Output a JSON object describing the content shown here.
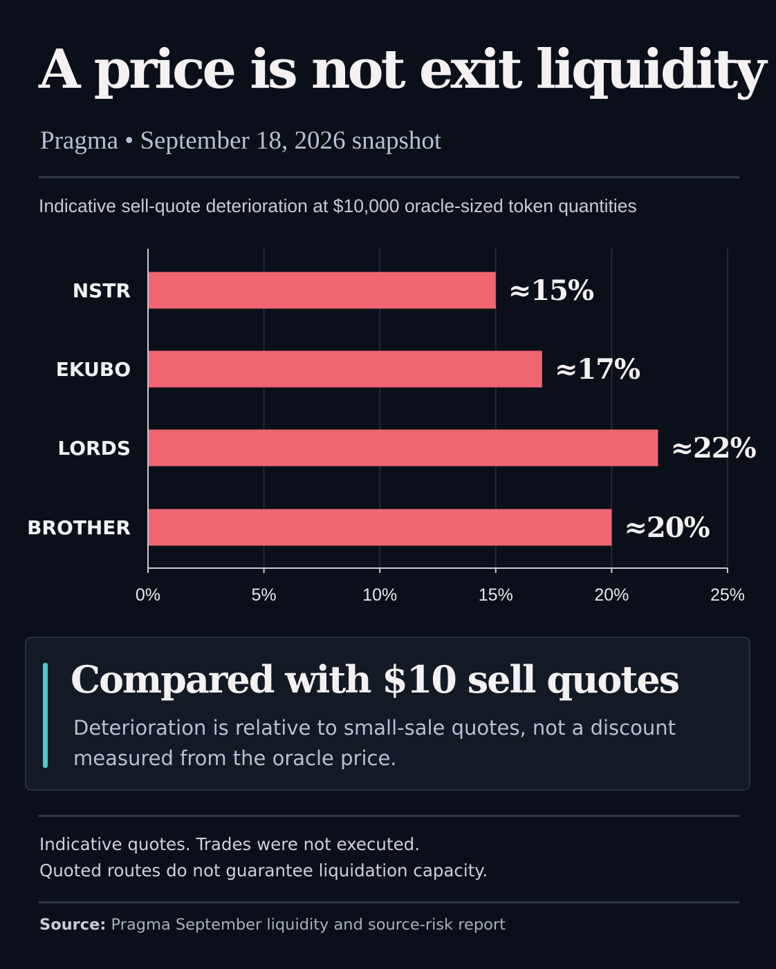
{
  "header": {
    "title": "A price is not exit liquidity",
    "subtitle": "Pragma • September 18, 2026 snapshot"
  },
  "chart_caption": "Indicative sell-quote deterioration at $10,000 oracle-sized token quantities",
  "chart_data": {
    "type": "bar",
    "orientation": "horizontal",
    "title": "Indicative sell-quote deterioration at $10,000 oracle-sized token quantities",
    "categories": [
      "NSTR",
      "EKUBO",
      "LORDS",
      "BROTHER"
    ],
    "values": [
      15,
      17,
      22,
      20
    ],
    "value_labels": [
      "≈15%",
      "≈17%",
      "≈22%",
      "≈20%"
    ],
    "x_ticks": [
      "0%",
      "5%",
      "10%",
      "15%",
      "20%",
      "25%"
    ],
    "x_tick_values": [
      0,
      5,
      10,
      15,
      20,
      25
    ],
    "xlim": [
      0,
      25
    ],
    "grid": true,
    "bar_color": "#ef6670"
  },
  "callout": {
    "title": "Compared with $10 sell quotes",
    "body": "Deterioration is relative to small-sale quotes, not a discount measured from the oracle price.",
    "accent_color": "#4fc8cf"
  },
  "notes": {
    "line1": "Indicative quotes. Trades were not executed.",
    "line2": "Quoted routes do not guarantee liquidation capacity."
  },
  "source": {
    "label": "Source:",
    "text": "Pragma September liquidity and source-risk report"
  }
}
